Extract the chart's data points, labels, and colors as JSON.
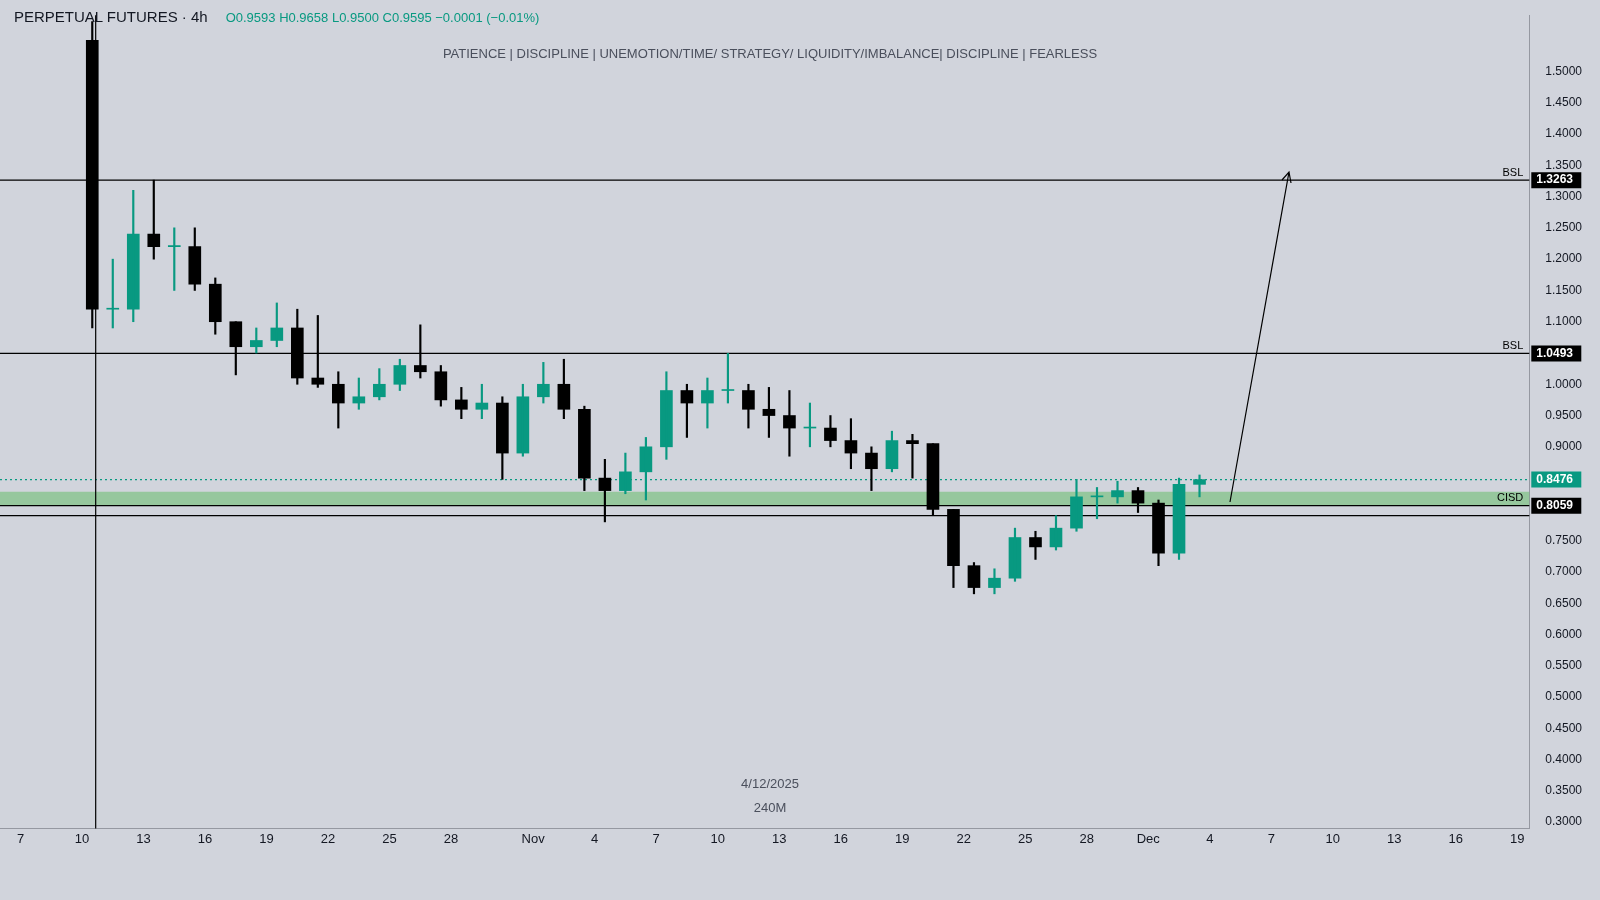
{
  "chart_data": {
    "type": "candlestick",
    "title": "PERPETUAL FUTURES · 4h",
    "subtitle": "PATIENCE  |  DISCIPLINE  |  UNEMOTION/TIME/ STRATEGY/ LIQUIDITY/IMBALANCE|  DISCIPLINE  |  FEARLESS",
    "annotations": [
      "O0.9593 H0.9658 L0.9500 C0.9595 −0.0001 (−0.01%)",
      "4/12/2025",
      "240M",
      "1.3263",
      "1.0493",
      "0.8476",
      "0.8059"
    ],
    "x": [
      "2025-10-10T12:00",
      "2025-10-11T12:00",
      "2025-10-12T12:00",
      "2025-10-13T12:00",
      "2025-10-14T12:00",
      "2025-10-15T12:00",
      "2025-10-16T12:00",
      "2025-10-17T12:00",
      "2025-10-18T12:00",
      "2025-10-19T12:00",
      "2025-10-20T12:00",
      "2025-10-21T12:00",
      "2025-10-22T12:00",
      "2025-10-23T12:00",
      "2025-10-24T12:00",
      "2025-10-25T12:00",
      "2025-10-26T12:00",
      "2025-10-27T12:00",
      "2025-10-28T12:00",
      "2025-10-29T12:00",
      "2025-10-30T12:00",
      "2025-10-31T12:00",
      "2025-11-01T12:00",
      "2025-11-02T12:00",
      "2025-11-03T12:00",
      "2025-11-04T12:00",
      "2025-11-05T12:00",
      "2025-11-06T12:00",
      "2025-11-07T12:00",
      "2025-11-08T12:00",
      "2025-11-09T12:00",
      "2025-11-10T12:00",
      "2025-11-11T12:00",
      "2025-11-12T12:00",
      "2025-11-13T12:00",
      "2025-11-14T12:00",
      "2025-11-15T12:00",
      "2025-11-16T12:00",
      "2025-11-17T12:00",
      "2025-11-18T12:00",
      "2025-11-19T12:00",
      "2025-11-20T12:00",
      "2025-11-21T12:00",
      "2025-11-22T12:00",
      "2025-11-23T12:00",
      "2025-11-24T12:00",
      "2025-11-25T12:00",
      "2025-11-26T12:00",
      "2025-11-27T12:00",
      "2025-11-28T12:00",
      "2025-11-29T12:00",
      "2025-11-30T12:00",
      "2025-12-01T12:00",
      "2025-12-02T12:00",
      "2025-12-03T12:00"
    ],
    "ohlc": [
      [
        1.55,
        1.58,
        1.09,
        1.12
      ],
      [
        1.12,
        1.2,
        1.09,
        1.12
      ],
      [
        1.12,
        1.31,
        1.1,
        1.24
      ],
      [
        1.24,
        1.3263,
        1.2,
        1.22
      ],
      [
        1.22,
        1.25,
        1.15,
        1.22
      ],
      [
        1.22,
        1.25,
        1.15,
        1.16
      ],
      [
        1.16,
        1.17,
        1.08,
        1.1
      ],
      [
        1.1,
        1.1,
        1.015,
        1.06
      ],
      [
        1.06,
        1.09,
        1.05,
        1.07
      ],
      [
        1.07,
        1.13,
        1.06,
        1.09
      ],
      [
        1.09,
        1.12,
        1.0,
        1.01
      ],
      [
        1.01,
        1.11,
        0.995,
        1.0
      ],
      [
        1.0,
        1.02,
        0.93,
        0.97
      ],
      [
        0.97,
        1.01,
        0.96,
        0.98
      ],
      [
        0.98,
        1.025,
        0.975,
        1.0
      ],
      [
        1.0,
        1.04,
        0.99,
        1.03
      ],
      [
        1.03,
        1.095,
        1.01,
        1.02
      ],
      [
        1.02,
        1.03,
        0.965,
        0.975
      ],
      [
        0.975,
        0.995,
        0.945,
        0.96
      ],
      [
        0.96,
        1.0,
        0.945,
        0.97
      ],
      [
        0.97,
        0.98,
        0.848,
        0.89
      ],
      [
        0.89,
        1.0,
        0.885,
        0.98
      ],
      [
        0.98,
        1.035,
        0.97,
        1.0
      ],
      [
        1.0,
        1.04,
        0.945,
        0.96
      ],
      [
        0.96,
        0.965,
        0.83,
        0.85
      ],
      [
        0.85,
        0.88,
        0.78,
        0.83
      ],
      [
        0.83,
        0.89,
        0.825,
        0.86
      ],
      [
        0.86,
        0.915,
        0.815,
        0.9
      ],
      [
        0.9,
        1.02,
        0.88,
        0.99
      ],
      [
        0.99,
        1.0,
        0.915,
        0.97
      ],
      [
        0.97,
        1.01,
        0.93,
        0.99
      ],
      [
        0.99,
        1.0493,
        0.97,
        0.99
      ],
      [
        0.99,
        1.0,
        0.93,
        0.96
      ],
      [
        0.96,
        0.995,
        0.915,
        0.95
      ],
      [
        0.95,
        0.99,
        0.885,
        0.93
      ],
      [
        0.93,
        0.97,
        0.9,
        0.93
      ],
      [
        0.93,
        0.95,
        0.9,
        0.91
      ],
      [
        0.91,
        0.945,
        0.865,
        0.89
      ],
      [
        0.89,
        0.9,
        0.83,
        0.865
      ],
      [
        0.865,
        0.925,
        0.86,
        0.91
      ],
      [
        0.91,
        0.92,
        0.85,
        0.905
      ],
      [
        0.905,
        0.905,
        0.79,
        0.8
      ],
      [
        0.8,
        0.8,
        0.675,
        0.71
      ],
      [
        0.71,
        0.715,
        0.665,
        0.675
      ],
      [
        0.675,
        0.705,
        0.665,
        0.69
      ],
      [
        0.69,
        0.77,
        0.685,
        0.755
      ],
      [
        0.755,
        0.765,
        0.72,
        0.74
      ],
      [
        0.74,
        0.79,
        0.735,
        0.77
      ],
      [
        0.77,
        0.848,
        0.765,
        0.82
      ],
      [
        0.82,
        0.835,
        0.785,
        0.82
      ],
      [
        0.82,
        0.845,
        0.81,
        0.83
      ],
      [
        0.83,
        0.835,
        0.795,
        0.81
      ],
      [
        0.81,
        0.815,
        0.71,
        0.73
      ],
      [
        0.73,
        0.85,
        0.72,
        0.84
      ],
      [
        0.84,
        0.855,
        0.82,
        0.8476
      ]
    ],
    "xlim": [
      "2025-10-06T00:00",
      "2025-12-19T14:00"
    ],
    "xticks": [
      {
        "value": "2025-10-07T00:00",
        "label": "7"
      },
      {
        "value": "2025-10-10T00:00",
        "label": "10"
      },
      {
        "value": "2025-10-13T00:00",
        "label": "13"
      },
      {
        "value": "2025-10-16T00:00",
        "label": "16"
      },
      {
        "value": "2025-10-19T00:00",
        "label": "19"
      },
      {
        "value": "2025-10-22T00:00",
        "label": "22"
      },
      {
        "value": "2025-10-25T00:00",
        "label": "25"
      },
      {
        "value": "2025-10-28T00:00",
        "label": "28"
      },
      {
        "value": "2025-11-01T00:00",
        "label": "Nov"
      },
      {
        "value": "2025-11-04T00:00",
        "label": "4"
      },
      {
        "value": "2025-11-07T00:00",
        "label": "7"
      },
      {
        "value": "2025-11-10T00:00",
        "label": "10"
      },
      {
        "value": "2025-11-13T00:00",
        "label": "13"
      },
      {
        "value": "2025-11-16T00:00",
        "label": "16"
      },
      {
        "value": "2025-11-19T00:00",
        "label": "19"
      },
      {
        "value": "2025-11-22T00:00",
        "label": "22"
      },
      {
        "value": "2025-11-25T00:00",
        "label": "25"
      },
      {
        "value": "2025-11-28T00:00",
        "label": "28"
      },
      {
        "value": "2025-12-01T00:00",
        "label": "Dec"
      },
      {
        "value": "2025-12-04T00:00",
        "label": "4"
      },
      {
        "value": "2025-12-07T00:00",
        "label": "7"
      },
      {
        "value": "2025-12-10T00:00",
        "label": "10"
      },
      {
        "value": "2025-12-13T00:00",
        "label": "13"
      },
      {
        "value": "2025-12-16T00:00",
        "label": "16"
      },
      {
        "value": "2025-12-19T00:00",
        "label": "19"
      }
    ],
    "ylim": [
      0.29,
      1.59
    ],
    "yticks": [
      {
        "value": 0.3,
        "label": "0.3000"
      },
      {
        "value": 0.35,
        "label": "0.3500"
      },
      {
        "value": 0.4,
        "label": "0.4000"
      },
      {
        "value": 0.45,
        "label": "0.4500"
      },
      {
        "value": 0.5,
        "label": "0.5000"
      },
      {
        "value": 0.55,
        "label": "0.5500"
      },
      {
        "value": 0.6,
        "label": "0.6000"
      },
      {
        "value": 0.65,
        "label": "0.6500"
      },
      {
        "value": 0.7,
        "label": "0.7000"
      },
      {
        "value": 0.75,
        "label": "0.7500"
      },
      {
        "value": 0.9,
        "label": "0.9000"
      },
      {
        "value": 0.95,
        "label": "0.9500"
      },
      {
        "value": 1.0,
        "label": "1.0000"
      },
      {
        "value": 1.1,
        "label": "1.1000"
      },
      {
        "value": 1.15,
        "label": "1.1500"
      },
      {
        "value": 1.2,
        "label": "1.2000"
      },
      {
        "value": 1.25,
        "label": "1.2500"
      },
      {
        "value": 1.3,
        "label": "1.3000"
      },
      {
        "value": 1.35,
        "label": "1.3500"
      },
      {
        "value": 1.4,
        "label": "1.4000"
      },
      {
        "value": 1.45,
        "label": "1.4500"
      },
      {
        "value": 1.5,
        "label": "1.5000"
      }
    ],
    "ref_lines": [
      {
        "axis": "y",
        "value": 1.3263,
        "label": "BSL",
        "color": "#000000"
      },
      {
        "axis": "y",
        "value": 1.0493,
        "label": "BSL",
        "color": "#000000"
      },
      {
        "axis": "y",
        "value": 0.8059,
        "label": "CISD",
        "color": "#000000"
      },
      {
        "axis": "y",
        "value": 0.79,
        "label": null,
        "color": "#000000"
      },
      {
        "axis": "y",
        "value": 0.8476,
        "label": null,
        "color": "#089981",
        "line_style": "dotted"
      },
      {
        "axis": "x",
        "value": "2025-10-10T16:00",
        "label": null,
        "color": "#000000"
      }
    ],
    "bands": [
      {
        "axis": "y",
        "from": 0.8059,
        "to": 0.828,
        "label": null,
        "color": "#66bb6a"
      }
    ],
    "grid": false,
    "legend": false
  }
}
